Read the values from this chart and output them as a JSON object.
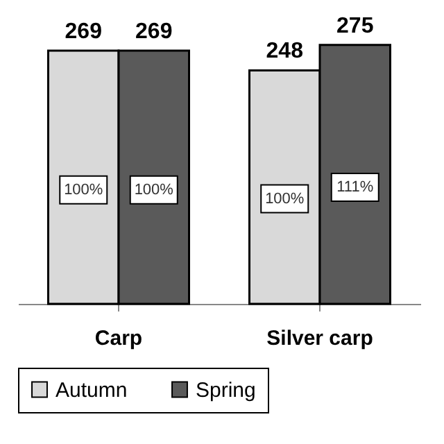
{
  "chart_data": {
    "type": "bar",
    "categories": [
      "Carp",
      "Silver carp"
    ],
    "series": [
      {
        "name": "Autumn",
        "color": "#d9d9d9",
        "values": [
          269,
          248
        ]
      },
      {
        "name": "Spring",
        "color": "#5a5a5a",
        "values": [
          269,
          275
        ]
      }
    ],
    "data_labels": true,
    "annotations": [
      "100%",
      "100%",
      "100%",
      "111%"
    ],
    "legend": "bottom",
    "grid": false
  }
}
